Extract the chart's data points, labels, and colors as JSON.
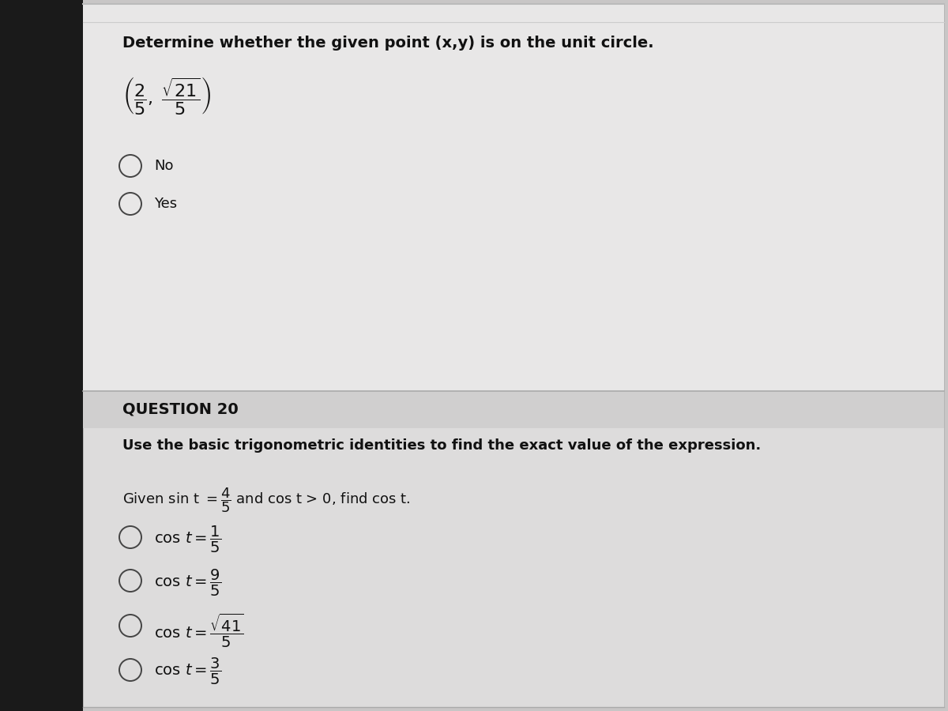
{
  "bg_left_dark": "#1a1a1a",
  "bg_mid_gray": "#c8c6c6",
  "panel_light": "#dddcdc",
  "panel_lighter": "#e8e7e7",
  "strip_color": "#d0cfcf",
  "title_q19": "Determine whether the given point (x,y) is on the unit circle.",
  "q19_options": [
    "No",
    "Yes"
  ],
  "q20_header": "QUESTION 20",
  "q20_instruction": "Use the basic trigonometric identities to find the exact value of the expression.",
  "font_size_title": 14,
  "font_size_body": 13,
  "font_size_header": 14,
  "font_size_math": 14,
  "font_size_point": 16
}
